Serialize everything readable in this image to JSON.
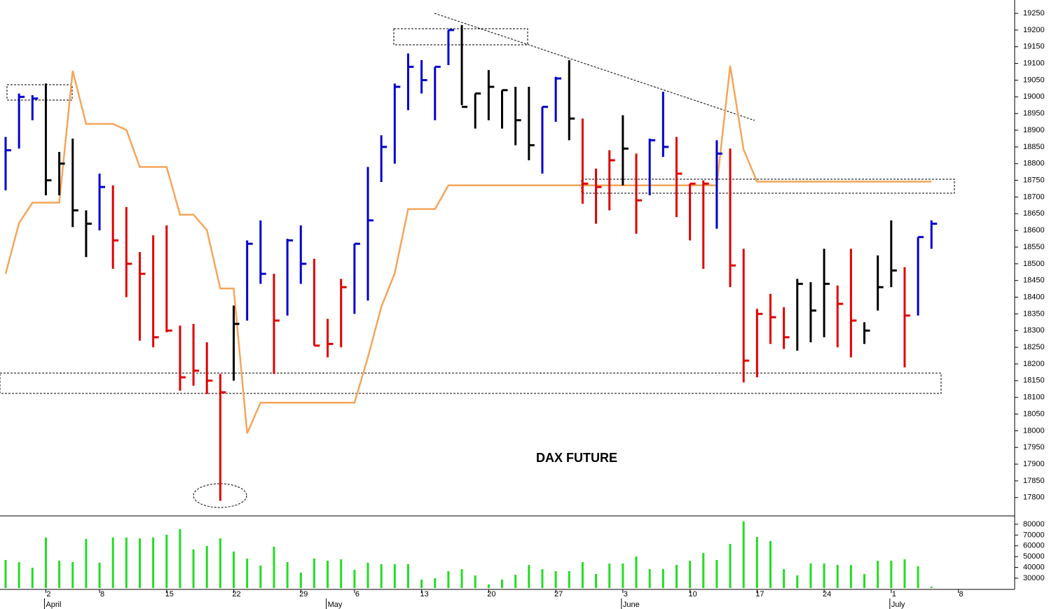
{
  "chart_data": {
    "type": "ohlc",
    "title": "DAX FUTURE",
    "x": [
      0,
      1,
      2,
      3,
      4,
      5,
      6,
      7,
      8,
      9,
      10,
      11,
      12,
      13,
      14,
      15,
      16,
      17,
      18,
      19,
      20,
      21,
      22,
      23,
      24,
      25,
      26,
      27,
      28,
      29,
      30,
      31,
      32,
      33,
      34,
      35,
      36,
      37,
      38,
      39,
      40,
      41,
      42,
      43,
      44,
      45,
      46,
      47,
      48,
      49,
      50,
      51,
      52,
      53,
      54,
      55,
      56,
      57,
      58,
      59,
      60,
      61,
      62,
      63,
      64,
      65,
      66,
      67,
      68,
      69
    ],
    "high": [
      18880,
      19010,
      19005,
      19040,
      18835,
      18875,
      18660,
      18770,
      18735,
      18670,
      18535,
      18585,
      18615,
      18315,
      18320,
      18265,
      18170,
      18375,
      18570,
      18630,
      18470,
      18575,
      18615,
      18515,
      18335,
      18455,
      18560,
      18790,
      18885,
      19040,
      19130,
      19110,
      19090,
      19200,
      19215,
      19010,
      19080,
      19020,
      19030,
      19030,
      18970,
      19060,
      19110,
      18935,
      18785,
      18840,
      18945,
      18830,
      18875,
      19015,
      18880,
      18740,
      18750,
      18870,
      18845,
      18545,
      18365,
      18410,
      18370,
      18455,
      18445,
      18545,
      18435,
      18545,
      18325,
      18525,
      18630,
      18490,
      18580,
      18630
    ],
    "low": [
      18720,
      18845,
      18930,
      18705,
      18705,
      18610,
      18520,
      18600,
      18485,
      18400,
      18270,
      18250,
      18295,
      18120,
      18135,
      18110,
      17790,
      18150,
      18330,
      18440,
      18170,
      18345,
      18440,
      18255,
      18220,
      18250,
      18350,
      18390,
      18745,
      18800,
      18960,
      19010,
      18930,
      19095,
      18975,
      18905,
      18930,
      18905,
      18855,
      18810,
      18770,
      18925,
      18870,
      18680,
      18620,
      18660,
      18735,
      18590,
      18705,
      18820,
      18640,
      18570,
      18485,
      18605,
      18430,
      18145,
      18160,
      18260,
      18245,
      18240,
      18265,
      18280,
      18250,
      18220,
      18260,
      18360,
      18430,
      18190,
      18345,
      18545
    ],
    "close": [
      18840,
      19000,
      18995,
      18750,
      18800,
      18660,
      18620,
      18730,
      18570,
      18500,
      18470,
      18280,
      18300,
      18160,
      18180,
      18150,
      18115,
      18320,
      18560,
      18470,
      18330,
      18570,
      18500,
      18255,
      18260,
      18430,
      18560,
      18630,
      18850,
      19030,
      19090,
      19050,
      19090,
      19200,
      18970,
      19010,
      19030,
      19020,
      18930,
      18855,
      18970,
      19055,
      18935,
      18740,
      18730,
      18810,
      18845,
      18690,
      18870,
      18850,
      18770,
      18740,
      18740,
      18830,
      18495,
      18210,
      18350,
      18340,
      18280,
      18440,
      18360,
      18440,
      18380,
      18330,
      18300,
      18430,
      18480,
      18345,
      18580,
      18620
    ],
    "colors": [
      "#0000cc",
      "#0000cc",
      "#0000cc",
      "#000000",
      "#000000",
      "#000000",
      "#000000",
      "#0000cc",
      "#e00000",
      "#e00000",
      "#e00000",
      "#e00000",
      "#e00000",
      "#e00000",
      "#e00000",
      "#e00000",
      "#e00000",
      "#000000",
      "#0000cc",
      "#0000cc",
      "#e00000",
      "#0000cc",
      "#0000cc",
      "#e00000",
      "#e00000",
      "#e00000",
      "#0000cc",
      "#0000cc",
      "#0000cc",
      "#0000cc",
      "#0000cc",
      "#0000cc",
      "#0000cc",
      "#0000cc",
      "#000000",
      "#000000",
      "#000000",
      "#000000",
      "#000000",
      "#000000",
      "#0000cc",
      "#0000cc",
      "#000000",
      "#e00000",
      "#e00000",
      "#e00000",
      "#000000",
      "#e00000",
      "#0000cc",
      "#0000cc",
      "#e00000",
      "#e00000",
      "#e00000",
      "#0000cc",
      "#e00000",
      "#e00000",
      "#e00000",
      "#e00000",
      "#e00000",
      "#000000",
      "#000000",
      "#000000",
      "#e00000",
      "#e00000",
      "#000000",
      "#000000",
      "#000000",
      "#e00000",
      "#0000cc",
      "#0000cc"
    ],
    "line": {
      "color": "#f5a55a",
      "x": [
        0,
        1,
        2,
        4,
        5,
        6,
        8,
        9,
        10,
        12,
        13,
        14,
        15,
        16,
        17,
        18,
        19,
        26,
        27,
        28,
        29,
        30,
        32,
        33,
        53,
        54,
        55,
        56,
        69
      ],
      "values": [
        18470,
        18622,
        18683,
        18683,
        19078,
        18919,
        18919,
        18901,
        18790,
        18790,
        18647,
        18647,
        18601,
        18426,
        18426,
        17992,
        18084,
        18084,
        18220,
        18371,
        18472,
        18664,
        18664,
        18735,
        18735,
        19093,
        18842,
        18746,
        18746
      ]
    },
    "volume": {
      "color": "#22dd22",
      "values": [
        46900,
        44900,
        39700,
        67700,
        46200,
        44900,
        66400,
        44300,
        67700,
        67700,
        67000,
        67700,
        70300,
        75500,
        56700,
        59900,
        67000,
        54700,
        48200,
        41700,
        59200,
        44900,
        35200,
        48200,
        46200,
        47500,
        37800,
        44300,
        43000,
        43000,
        43000,
        28700,
        30000,
        36500,
        38400,
        32600,
        24200,
        28700,
        33200,
        42300,
        38400,
        36500,
        36500,
        44900,
        33900,
        43600,
        43600,
        50100,
        38400,
        38400,
        42300,
        46200,
        53400,
        46900,
        61800,
        82600,
        68300,
        64400,
        38400,
        32600,
        43600,
        43600,
        42300,
        42300,
        33900,
        46200,
        46200,
        47500,
        41000,
        22200
      ],
      "ylim": [
        20900,
        87100
      ],
      "yticks": [
        30000,
        40000,
        50000,
        60000,
        70000,
        80000
      ]
    },
    "xlim": [
      -0.418,
      75.2
    ],
    "xticks": [
      {
        "value": 3,
        "label": "2"
      },
      {
        "value": 7,
        "label": "8"
      },
      {
        "value": 12,
        "label": "15"
      },
      {
        "value": 17,
        "label": "22"
      },
      {
        "value": 22,
        "label": "29"
      },
      {
        "value": 26,
        "label": "6"
      },
      {
        "value": 31,
        "label": "13"
      },
      {
        "value": 36,
        "label": "20"
      },
      {
        "value": 41,
        "label": "27"
      },
      {
        "value": 46,
        "label": "3"
      },
      {
        "value": 51,
        "label": "10"
      },
      {
        "value": 56,
        "label": "17"
      },
      {
        "value": 61,
        "label": "24"
      },
      {
        "value": 66,
        "label": "1"
      },
      {
        "value": 71,
        "label": "8"
      }
    ],
    "month_labels": [
      {
        "value": 3,
        "label": "April"
      },
      {
        "value": 24,
        "label": "May"
      },
      {
        "value": 46,
        "label": "June"
      },
      {
        "value": 66,
        "label": "July"
      }
    ],
    "ylim": [
      17745,
      19290
    ],
    "yticks": [
      17800,
      17850,
      17900,
      17950,
      18000,
      18050,
      18100,
      18150,
      18200,
      18250,
      18300,
      18350,
      18400,
      18450,
      18500,
      18550,
      18600,
      18650,
      18700,
      18750,
      18800,
      18850,
      18900,
      18950,
      19000,
      19050,
      19100,
      19150,
      19200,
      19250
    ]
  }
}
